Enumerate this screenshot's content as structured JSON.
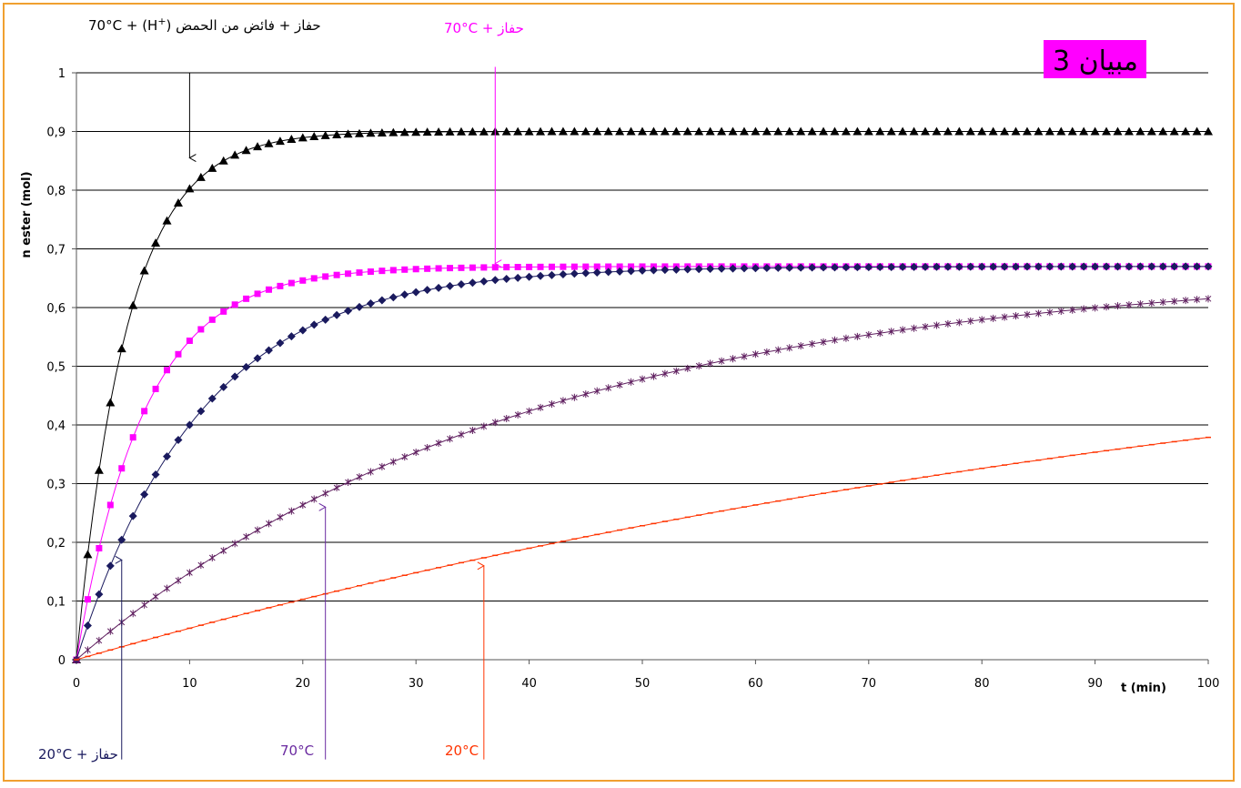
{
  "chart_data": {
    "type": "line",
    "title": "مبيان 3",
    "title_bg": "#ff00ff",
    "xlabel": "t (min)",
    "ylabel": "n ester (mol)",
    "xlim": [
      0,
      100
    ],
    "ylim": [
      0,
      1
    ],
    "x_ticks": [
      "0",
      "10",
      "20",
      "30",
      "40",
      "50",
      "60",
      "70",
      "80",
      "90",
      "100"
    ],
    "y_ticks": [
      "0",
      "0,1",
      "0,2",
      "0,3",
      "0,4",
      "0,5",
      "0,6",
      "0,7",
      "0,8",
      "0,9",
      "1"
    ],
    "grid": "horizontal",
    "series": [
      {
        "key": "acid_excess",
        "color": "#000000",
        "marker": "triangle",
        "plateau": 0.9,
        "tau": 4.5
      },
      {
        "key": "cat70",
        "color": "#ff00ff",
        "marker": "square",
        "plateau": 0.67,
        "tau": 6.0
      },
      {
        "key": "cat20",
        "color": "#1a1a5e",
        "marker": "diamond",
        "plateau": 0.67,
        "tau": 11.0
      },
      {
        "key": "t70",
        "color": "#602060",
        "marker": "star",
        "plateau": 0.67,
        "tau": 40.0
      },
      {
        "key": "t20",
        "color": "#ff3300",
        "marker": "dash",
        "plateau": 0.67,
        "tau": 120.0
      }
    ],
    "annotations": [
      {
        "key": "acid_excess",
        "color": "#000000",
        "parts": [
          "70°C",
          "+",
          "(H",
          "+",
          ")",
          "حفاز",
          "+",
          "فائض من الحمض"
        ],
        "arrow_from": [
          10,
          1.0
        ],
        "arrow_to": [
          10,
          0.855
        ]
      },
      {
        "key": "cat70",
        "color": "#ff00ff",
        "parts": [
          "70°C",
          "+",
          "حفاز"
        ],
        "arrow_from": [
          37,
          1.01
        ],
        "arrow_to": [
          37,
          0.675
        ]
      },
      {
        "key": "cat20",
        "color": "#1a1a5e",
        "parts": [
          "20°C",
          "+",
          "حفاز"
        ],
        "arrow_from": [
          4,
          -0.17
        ],
        "arrow_to": [
          4,
          0.17
        ]
      },
      {
        "key": "t70",
        "color": "#6a2aa0",
        "parts": [
          "70°C"
        ],
        "arrow_from": [
          22,
          -0.17
        ],
        "arrow_to": [
          22,
          0.26
        ]
      },
      {
        "key": "t20",
        "color": "#ff3300",
        "parts": [
          "20°C"
        ],
        "arrow_from": [
          36,
          -0.17
        ],
        "arrow_to": [
          36,
          0.16
        ]
      }
    ]
  }
}
